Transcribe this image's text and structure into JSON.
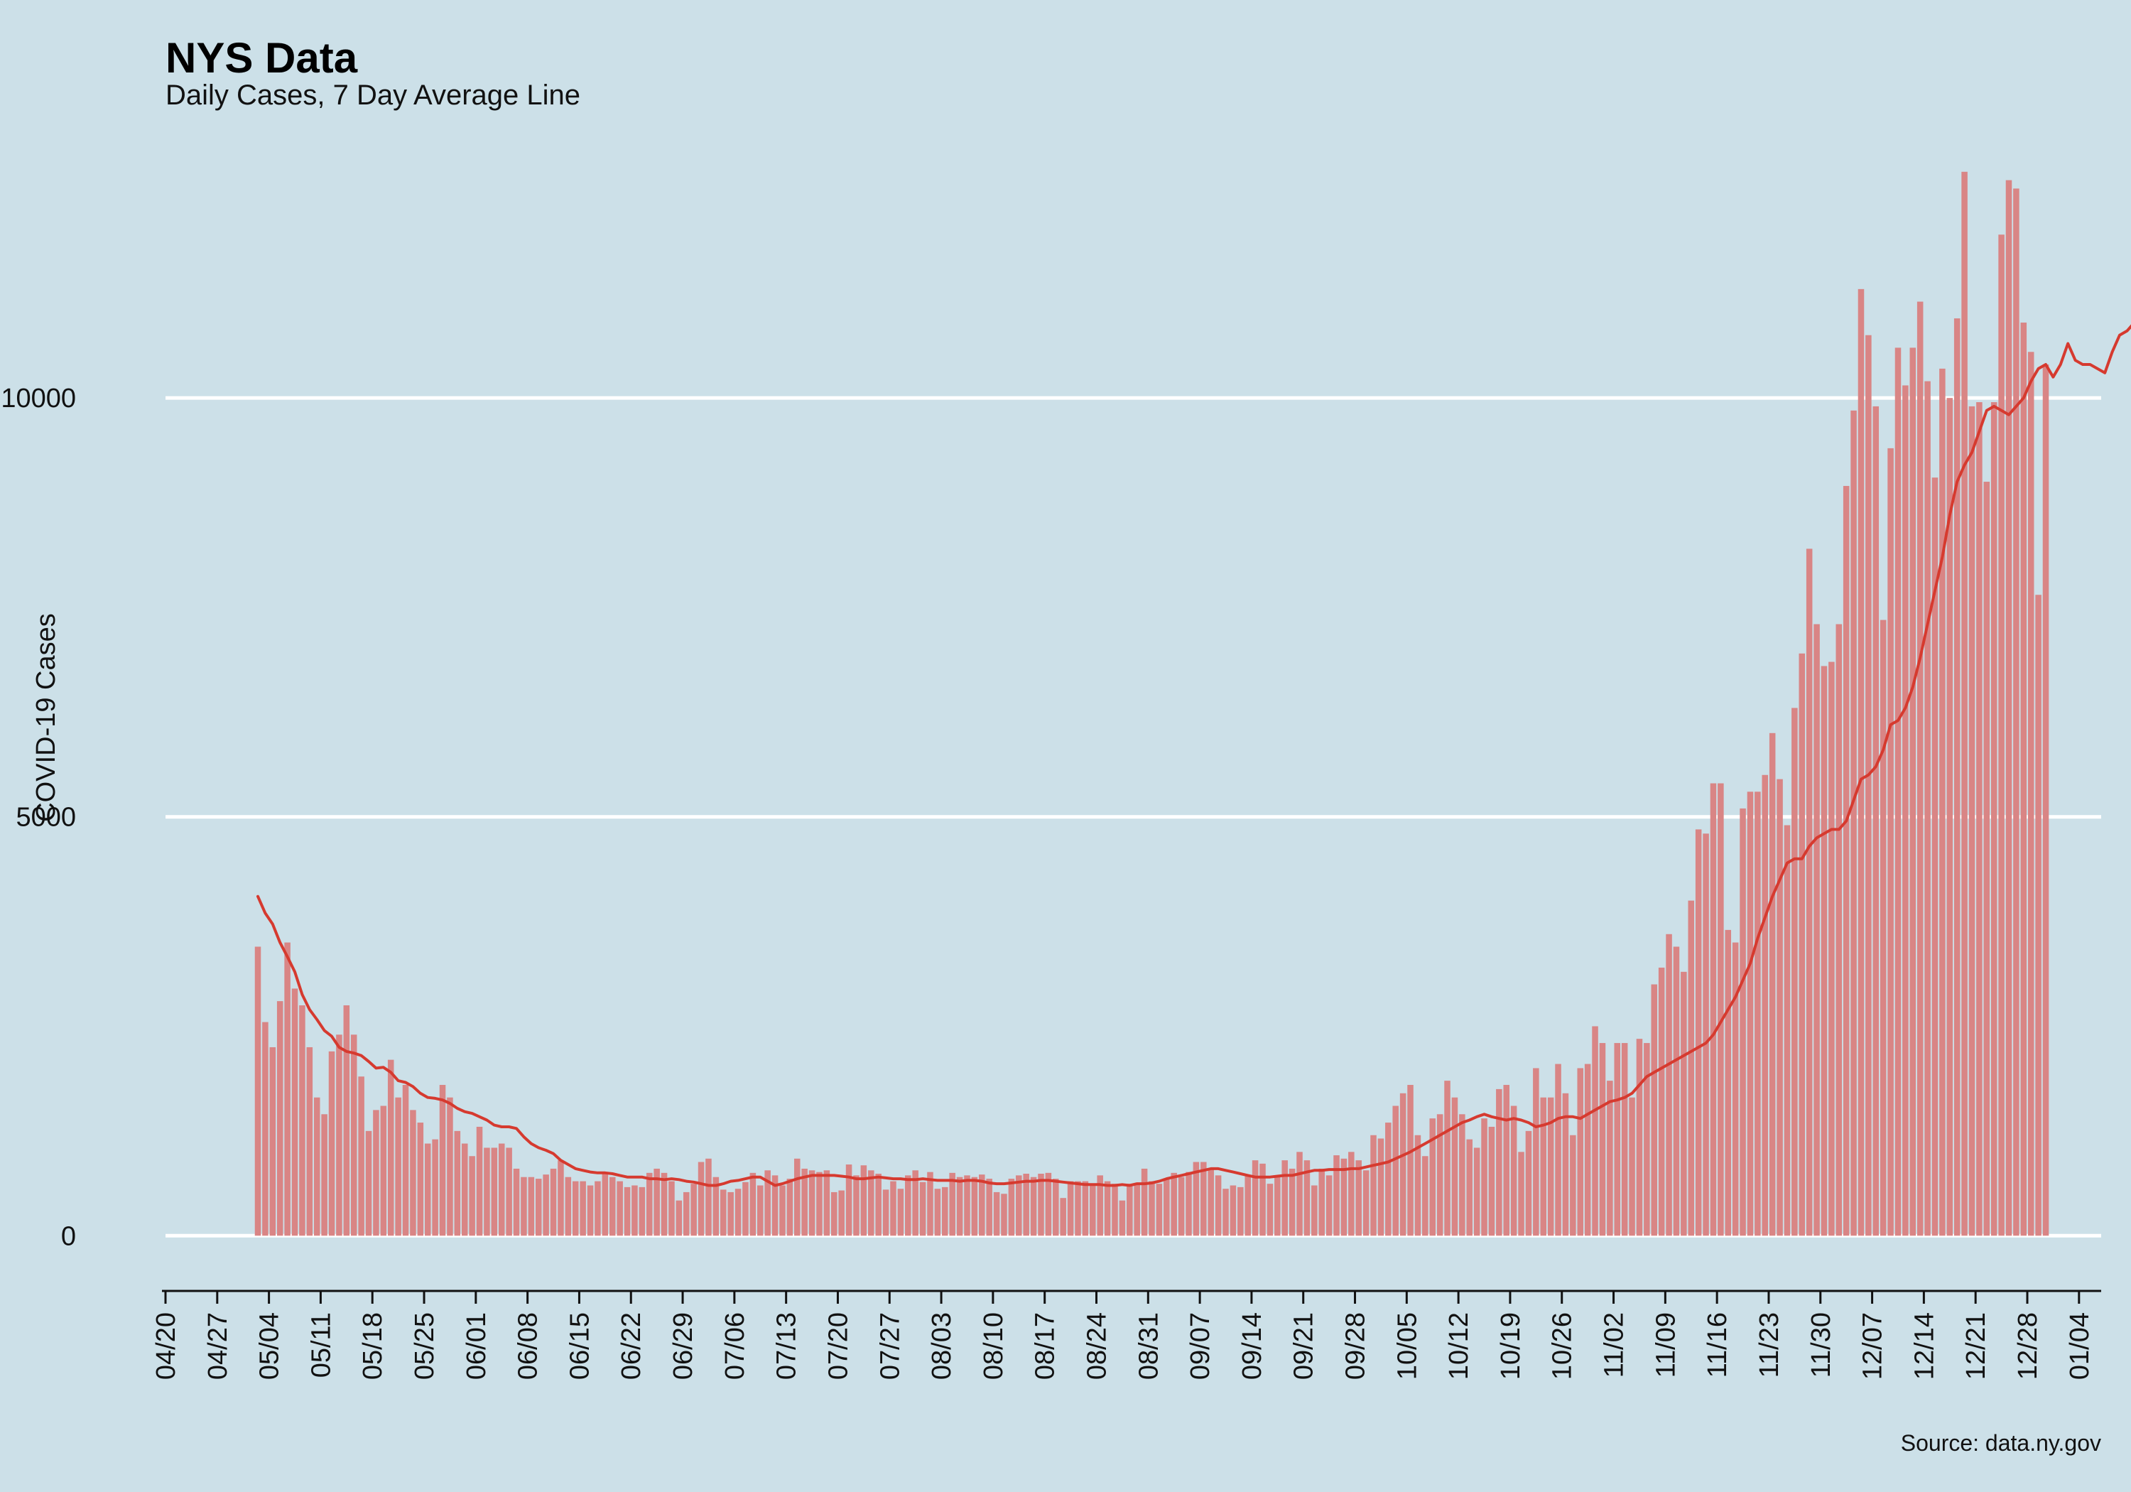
{
  "chart_data": {
    "type": "bar",
    "title": "NYS Data",
    "subtitle": "Daily Cases, 7 Day Average Line",
    "ylabel": "COVID-19 Cases",
    "xlabel": "",
    "caption": "Source: data.ny.gov",
    "x_range": [
      "2020-04-20",
      "2021-01-07"
    ],
    "ylim": [
      -600,
      12800
    ],
    "y_ticks": [
      0,
      5000,
      10000
    ],
    "x_tick_labels": [
      "04/20",
      "04/27",
      "05/04",
      "05/11",
      "05/18",
      "05/25",
      "06/01",
      "06/08",
      "06/15",
      "06/22",
      "06/29",
      "07/06",
      "07/13",
      "07/20",
      "07/27",
      "08/03",
      "08/10",
      "08/17",
      "08/24",
      "08/31",
      "09/07",
      "09/14",
      "09/21",
      "09/28",
      "10/05",
      "10/12",
      "10/19",
      "10/26",
      "11/02",
      "11/09",
      "11/16",
      "11/23",
      "11/30",
      "12/07",
      "12/14",
      "12/21",
      "12/28",
      "01/04"
    ],
    "grid": true,
    "legend": "none",
    "bar_color": "#d98585",
    "line_color": "#d63a2f",
    "series": [
      {
        "type": "bar",
        "start_date": "2020-05-02",
        "values": [
          3450,
          2550,
          2250,
          2800,
          3500,
          2950,
          2750,
          2250,
          1650,
          1450,
          2200,
          2400,
          2750,
          2400,
          1900,
          1250,
          1500,
          1550,
          2100,
          1650,
          1800,
          1500,
          1350,
          1100,
          1150,
          1800,
          1650,
          1250,
          1100,
          950,
          1300,
          1050,
          1050,
          1100,
          1050,
          800,
          700,
          700,
          680,
          730,
          800,
          900,
          700,
          650,
          650,
          600,
          650,
          750,
          700,
          650,
          580,
          600,
          580,
          750,
          800,
          750,
          650,
          420,
          520,
          620,
          880,
          920,
          700,
          550,
          520,
          560,
          640,
          750,
          600,
          780,
          720,
          600,
          680,
          920,
          800,
          780,
          760,
          780,
          520,
          540,
          850,
          720,
          840,
          780,
          740,
          550,
          650,
          560,
          720,
          780,
          640,
          760,
          560,
          580,
          750,
          700,
          720,
          700,
          730,
          680,
          520,
          500,
          680,
          720,
          740,
          700,
          740,
          750,
          680,
          450,
          650,
          650,
          650,
          620,
          720,
          650,
          620,
          420,
          620,
          620,
          800,
          650,
          620,
          680,
          750,
          700,
          760,
          880,
          880,
          800,
          720,
          560,
          600,
          580,
          720,
          900,
          860,
          620,
          720,
          900,
          800,
          1000,
          900,
          600,
          800,
          720,
          960,
          920,
          1000,
          900,
          780,
          1200,
          1160,
          1350,
          1550,
          1700,
          1800,
          1200,
          950,
          1400,
          1450,
          1850,
          1650,
          1450,
          1150,
          1050,
          1400,
          1300,
          1750,
          1800,
          1550,
          1000,
          1250,
          2000,
          1650,
          1650,
          2050,
          1700,
          1200,
          2000,
          2050,
          2500,
          2300,
          1850,
          2300,
          2300,
          1650,
          2350,
          2300,
          3000,
          3200,
          3600,
          3450,
          3150,
          4000,
          4850,
          4800,
          5400,
          5400,
          3650,
          3500,
          5100,
          5300,
          5300,
          5500,
          6000,
          5450,
          4900,
          6300,
          6950,
          8200,
          7300,
          6800,
          6850,
          7300,
          8950,
          9850,
          11300,
          10750,
          9900,
          7350,
          9400,
          10600,
          10150,
          10600,
          11150,
          10200,
          9050,
          10350,
          10000,
          10950,
          12700,
          9900,
          9950,
          9000,
          9950,
          11950,
          12600,
          12500,
          10900,
          10550,
          7650,
          10400
        ]
      },
      {
        "type": "line",
        "name": "7 Day Average",
        "start_date": "2020-05-02",
        "values": [
          4050,
          3850,
          3720,
          3500,
          3330,
          3150,
          2880,
          2700,
          2580,
          2450,
          2380,
          2250,
          2200,
          2180,
          2150,
          2080,
          2000,
          2010,
          1950,
          1850,
          1830,
          1780,
          1700,
          1650,
          1640,
          1620,
          1580,
          1520,
          1480,
          1460,
          1420,
          1380,
          1320,
          1300,
          1300,
          1280,
          1180,
          1100,
          1050,
          1020,
          980,
          900,
          850,
          800,
          780,
          760,
          750,
          750,
          740,
          720,
          700,
          700,
          700,
          680,
          680,
          670,
          680,
          670,
          650,
          640,
          620,
          600,
          600,
          620,
          650,
          660,
          680,
          700,
          700,
          650,
          600,
          620,
          650,
          680,
          700,
          720,
          720,
          720,
          720,
          710,
          700,
          680,
          680,
          690,
          700,
          690,
          680,
          680,
          670,
          670,
          680,
          670,
          660,
          660,
          660,
          650,
          660,
          660,
          650,
          630,
          620,
          620,
          630,
          640,
          650,
          650,
          660,
          660,
          650,
          640,
          630,
          620,
          610,
          610,
          610,
          600,
          600,
          610,
          600,
          620,
          620,
          630,
          650,
          680,
          700,
          720,
          740,
          760,
          780,
          800,
          800,
          780,
          760,
          740,
          720,
          700,
          700,
          700,
          710,
          720,
          720,
          740,
          760,
          780,
          780,
          790,
          790,
          790,
          800,
          800,
          820,
          840,
          860,
          880,
          920,
          960,
          1000,
          1050,
          1100,
          1150,
          1200,
          1250,
          1300,
          1350,
          1380,
          1420,
          1450,
          1420,
          1400,
          1380,
          1400,
          1380,
          1350,
          1300,
          1320,
          1350,
          1400,
          1420,
          1420,
          1400,
          1450,
          1500,
          1550,
          1600,
          1620,
          1650,
          1700,
          1800,
          1900,
          1950,
          2000,
          2050,
          2100,
          2150,
          2200,
          2250,
          2300,
          2400,
          2550,
          2700,
          2850,
          3050,
          3250,
          3550,
          3800,
          4050,
          4250,
          4450,
          4500,
          4500,
          4650,
          4750,
          4800,
          4850,
          4850,
          4950,
          5200,
          5450,
          5500,
          5600,
          5800,
          6100,
          6150,
          6300,
          6550,
          6900,
          7300,
          7700,
          8100,
          8600,
          9000,
          9200,
          9350,
          9600,
          9850,
          9900,
          9850,
          9800,
          9900,
          10000,
          10200,
          10350,
          10400,
          10250,
          10400,
          10650,
          10450,
          10400,
          10400,
          10350,
          10300,
          10550,
          10750,
          10800,
          10900,
          10600,
          10800
        ]
      }
    ]
  }
}
